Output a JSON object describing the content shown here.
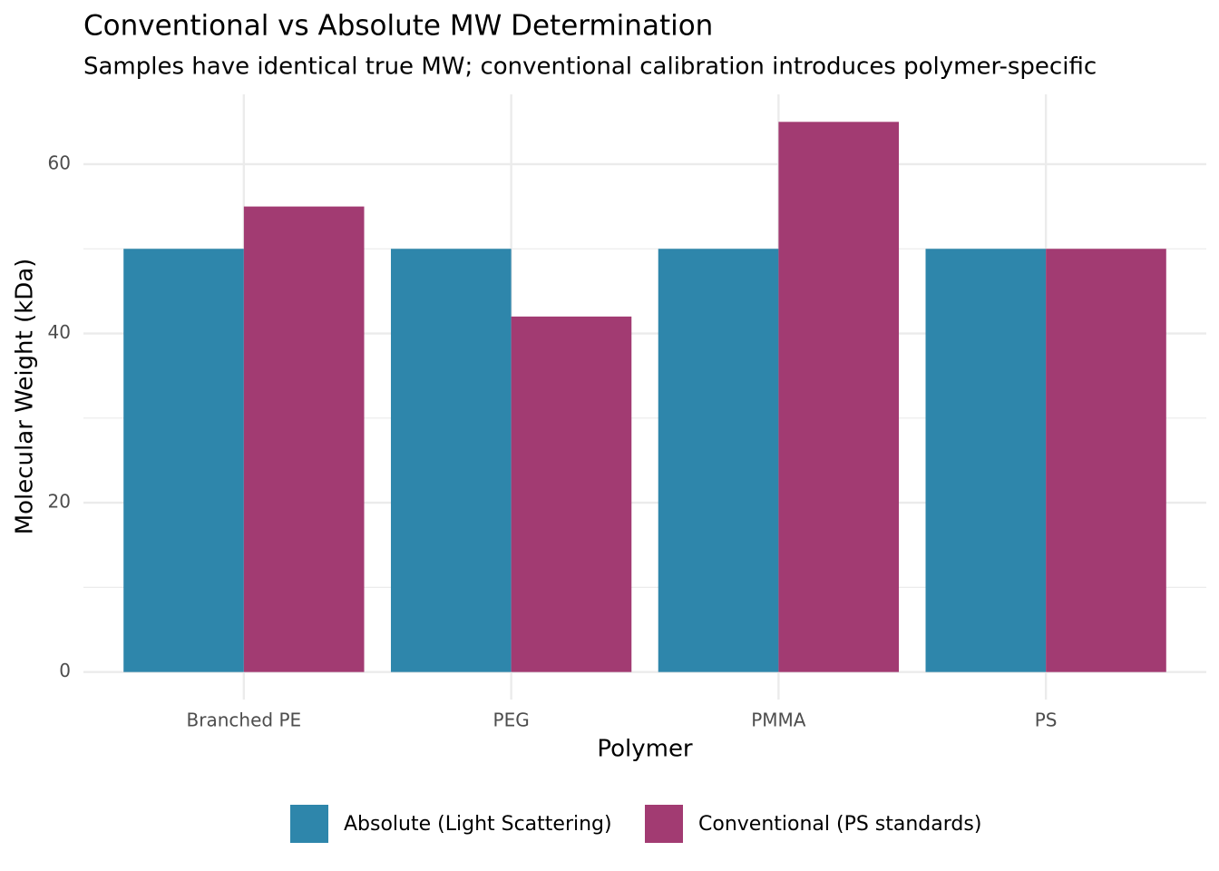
{
  "chart_data": {
    "type": "bar",
    "title": "Conventional vs Absolute MW Determination",
    "subtitle": "Samples have identical true MW; conventional calibration introduces polymer-specific",
    "x_label": "Polymer",
    "y_label": "Molecular Weight (kDa)",
    "categories": [
      "Branched PE",
      "PEG",
      "PMMA",
      "PS"
    ],
    "series": [
      {
        "name": "Absolute (Light Scattering)",
        "color": "#2e86ab",
        "values": [
          50,
          50,
          50,
          50
        ]
      },
      {
        "name": "Conventional (PS standards)",
        "color": "#a23b72",
        "values": [
          55,
          42,
          65,
          50
        ]
      }
    ],
    "ylim": [
      -3.25,
      68.25
    ],
    "yticks": [
      0,
      20,
      40,
      60
    ],
    "minor_yticks": [
      10,
      30,
      50
    ],
    "grid": true,
    "legend_position": "bottom"
  }
}
